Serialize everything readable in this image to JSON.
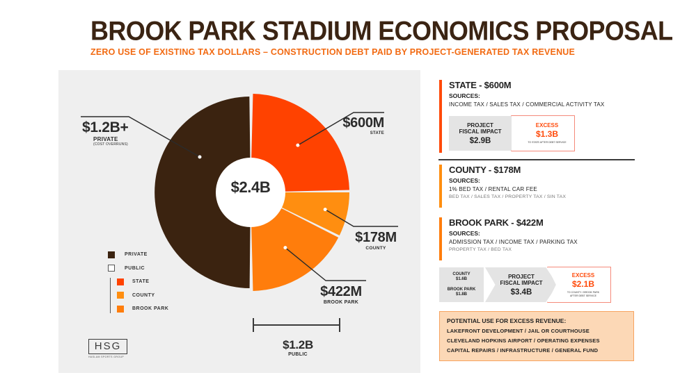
{
  "header": {
    "title": "BROOK PARK STADIUM ECONOMICS PROPOSAL",
    "subtitle": "ZERO USE OF EXISTING TAX DOLLARS – CONSTRUCTION DEBT PAID BY PROJECT-GENERATED TAX REVENUE"
  },
  "chart_data": {
    "type": "pie",
    "style": "donut",
    "center_label": "$2.4B",
    "total": 2.4,
    "unit": "billion USD",
    "slices": [
      {
        "name": "PRIVATE",
        "value": 1.2,
        "amount_label": "$1.2B+",
        "caption": "PRIVATE",
        "note": "(COST OVERRUNS)",
        "color": "#3b2310"
      },
      {
        "name": "STATE",
        "value": 0.6,
        "amount_label": "$600M",
        "caption": "STATE",
        "color": "#ff4200"
      },
      {
        "name": "COUNTY",
        "value": 0.178,
        "amount_label": "$178M",
        "caption": "COUNTY",
        "color": "#ff8e10"
      },
      {
        "name": "BROOK PARK",
        "value": 0.422,
        "amount_label": "$422M",
        "caption": "BROOK PARK",
        "color": "#ff7d0c"
      }
    ],
    "public_group": {
      "amount_label": "$1.2B",
      "caption": "PUBLIC"
    },
    "legend": [
      {
        "label": "PRIVATE",
        "color": "#3b2310"
      },
      {
        "label": "PUBLIC",
        "color": "#ffffff"
      },
      {
        "label": "STATE",
        "color": "#ff4200"
      },
      {
        "label": "COUNTY",
        "color": "#ff8e10"
      },
      {
        "label": "BROOK PARK",
        "color": "#ff7d0c"
      }
    ]
  },
  "logo": {
    "text": "HSG",
    "sub": "HASLAM SPORTS GROUP"
  },
  "state": {
    "title": "STATE - $600M",
    "sources_label": "SOURCES:",
    "sources": "INCOME TAX  /  SALES TAX  /  COMMERCIAL ACTIVITY TAX",
    "impact_label": "PROJECT FISCAL IMPACT",
    "impact_l1": "PROJECT",
    "impact_l2": "FISCAL IMPACT",
    "impact_value": "$2.9B",
    "excess_label": "EXCESS",
    "excess_value": "$1.3B",
    "excess_note": "TO STATE AFTER DEBT SERVICE"
  },
  "county": {
    "title": "COUNTY - $178M",
    "sources_label": "SOURCES:",
    "sources": "1% BED TAX  /  RENTAL CAR FEE",
    "sources_secondary": "BED TAX  /  SALES TAX  /  PROPERTY TAX  /  SIN TAX"
  },
  "brook_park": {
    "title": "BROOK PARK - $422M",
    "sources_label": "SOURCES:",
    "sources": "ADMISSION TAX  /  INCOME TAX  /  PARKING TAX",
    "sources_secondary": "PROPERTY TAX  /  BED TAX",
    "county_line1": "COUNTY",
    "county_line2": "$1.6B",
    "bp_line1": "BROOK PARK",
    "bp_line2": "$1.8B",
    "impact_l1": "PROJECT",
    "impact_l2": "FISCAL IMPACT",
    "impact_value": "$3.4B",
    "excess_label": "EXCESS",
    "excess_value": "$2.1B",
    "excess_note_1": "TO COUNTY / BROOK PARK",
    "excess_note_2": "AFTER DEBT SERVICE"
  },
  "excess_uses": {
    "heading": "POTENTIAL USE FOR EXCESS REVENUE:",
    "row1": "LAKEFRONT DEVELOPMENT  /  JAIL OR COURTHOUSE",
    "row2": "CLEVELAND HOPKINS AIRPORT  /  OPERATING EXPENSES",
    "row3": "CAPITAL REPAIRS  /  INFRASTRUCTURE  /  GENERAL FUND"
  }
}
